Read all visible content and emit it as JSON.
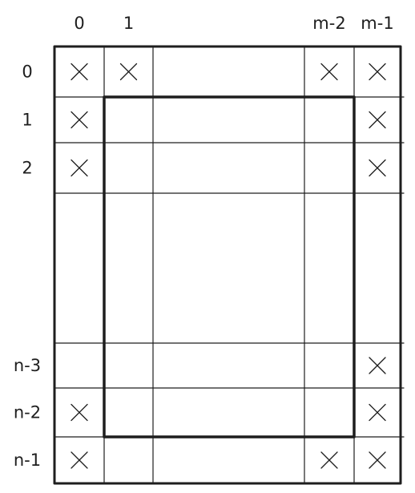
{
  "diagram": {
    "column_labels": [
      "0",
      "1",
      "m-2",
      "m-1"
    ],
    "row_labels": [
      "0",
      "1",
      "2",
      "n-3",
      "n-2",
      "n-1"
    ],
    "marked_cells": [
      {
        "row": "0",
        "col": "0"
      },
      {
        "row": "0",
        "col": "1"
      },
      {
        "row": "0",
        "col": "m-2"
      },
      {
        "row": "0",
        "col": "m-1"
      },
      {
        "row": "1",
        "col": "0"
      },
      {
        "row": "1",
        "col": "m-1"
      },
      {
        "row": "2",
        "col": "0"
      },
      {
        "row": "2",
        "col": "m-1"
      },
      {
        "row": "n-3",
        "col": "m-1"
      },
      {
        "row": "n-2",
        "col": "0"
      },
      {
        "row": "n-2",
        "col": "m-1"
      },
      {
        "row": "n-1",
        "col": "0"
      },
      {
        "row": "n-1",
        "col": "m-2"
      },
      {
        "row": "n-1",
        "col": "m-1"
      }
    ],
    "cell_mark_symbol": "cross-icon"
  }
}
